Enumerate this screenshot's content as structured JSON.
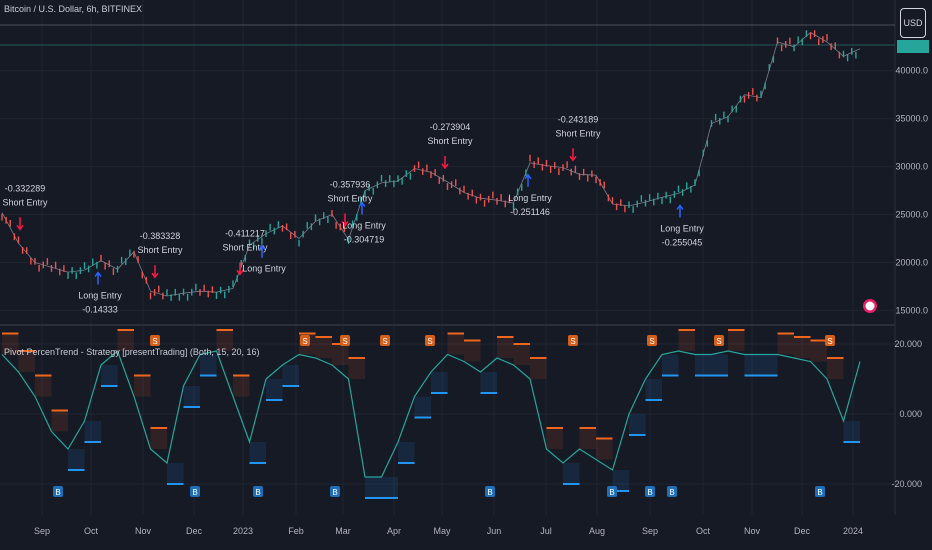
{
  "header": {
    "title": "Bitcoin / U.S. Dollar, 6h, BITFINEX",
    "currency_button": "USD"
  },
  "indicator": {
    "title": "Pivot PercenTrend - Strategy [presentTrading] (Both, 15, 20, 16)"
  },
  "colors": {
    "bg": "#161a25",
    "grid": "#1f2431",
    "up": "#26a69a",
    "down": "#ef5350",
    "long_arrow": "#2962ff",
    "short_arrow": "#ff1744",
    "trend_up": "#2196f3",
    "trend_down": "#f0661d",
    "pct_line": "#26a69a",
    "badge_blue": "#1e6fb8",
    "badge_orange": "#d35f1a"
  },
  "chart_data": [
    {
      "type": "line",
      "title": "Bitcoin / U.S. Dollar, 6h, BITFINEX",
      "xlabel": "",
      "ylabel": "",
      "x_ticks": [
        "Sep",
        "Oct",
        "Nov",
        "Dec",
        "2023",
        "Feb",
        "Mar",
        "Apr",
        "May",
        "Jun",
        "Jul",
        "Aug",
        "Sep",
        "Oct",
        "Nov",
        "Dec",
        "2024"
      ],
      "y_ticks": [
        15000,
        20000,
        25000,
        30000,
        35000,
        40000
      ],
      "ylim": [
        14000,
        45500
      ],
      "series": [
        {
          "values": [
            25200,
            22000,
            20000,
            19500,
            19000,
            19200,
            20200,
            19300,
            21100,
            17000,
            16500,
            16800,
            17000,
            16900,
            17300,
            21800,
            23000,
            23800,
            22500,
            24300,
            25000,
            22400,
            27500,
            28300,
            28500,
            29800,
            29400,
            28400,
            27300,
            26700,
            26500,
            26200,
            30400,
            30100,
            29900,
            29200,
            29100,
            26100,
            25900,
            26300,
            26800,
            27200,
            28100,
            34500,
            35200,
            37500,
            37200,
            43000,
            42500,
            44000,
            43000,
            41500,
            42300
          ]
        }
      ]
    },
    {
      "type": "line",
      "title": "Pivot PercenTrend - Strategy [presentTrading] (Both, 15, 20, 16)",
      "y_ticks": [
        -20,
        0,
        20
      ],
      "ylim": [
        -26,
        24
      ],
      "series": [
        {
          "name": "",
          "values": [
            17,
            12,
            5,
            -5,
            -10,
            -2,
            14,
            18,
            5,
            -10,
            -14,
            8,
            17,
            18,
            5,
            -8,
            10,
            14,
            17,
            16,
            14,
            10,
            -18,
            -18,
            -8,
            5,
            12,
            17,
            15,
            12,
            16,
            14,
            10,
            -10,
            -14,
            -10,
            -13,
            -16,
            0,
            10,
            17,
            18,
            17,
            17,
            18,
            17,
            17,
            17,
            16,
            15,
            10,
            -2,
            15
          ]
        }
      ],
      "entries": [
        {
          "type": "short",
          "label": "Short Entry",
          "value": "-0.332289"
        },
        {
          "type": "long",
          "label": "Long Entry",
          "value": "-0.14333"
        },
        {
          "type": "short",
          "label": "Short Entry",
          "value": "-0.383328"
        },
        {
          "type": "short",
          "label": "Short Entry",
          "value": "-0.411217"
        },
        {
          "type": "long",
          "label": "Long Entry",
          "value": ""
        },
        {
          "type": "short",
          "label": "Short Entry",
          "value": "-0.357936"
        },
        {
          "type": "long",
          "label": "Long Entry",
          "value": "-0.304719"
        },
        {
          "type": "short",
          "label": "Short Entry",
          "value": "-0.273904"
        },
        {
          "type": "long",
          "label": "Long Entry",
          "value": "-0.251146"
        },
        {
          "type": "short",
          "label": "Short Entry",
          "value": "-0.243189"
        },
        {
          "type": "long",
          "label": "Long Entry",
          "value": "-0.255045"
        }
      ]
    }
  ]
}
